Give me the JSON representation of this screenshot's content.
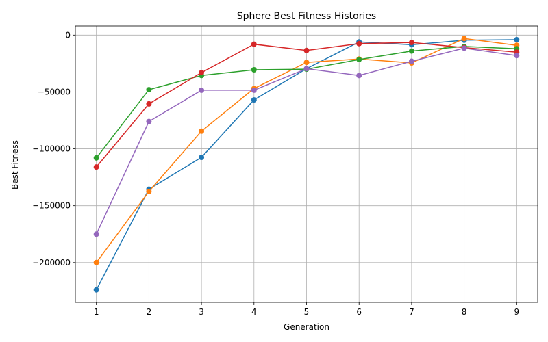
{
  "chart_data": {
    "type": "line",
    "title": "Sphere Best Fitness Histories",
    "xlabel": "Generation",
    "ylabel": "Best Fitness",
    "x": [
      1,
      2,
      3,
      4,
      5,
      6,
      7,
      8,
      9
    ],
    "xlim": [
      0.6,
      9.4
    ],
    "ylim": [
      -235000,
      8000
    ],
    "xticks": [
      1,
      2,
      3,
      4,
      5,
      6,
      7,
      8,
      9
    ],
    "yticks": [
      0,
      -50000,
      -100000,
      -150000,
      -200000
    ],
    "grid": true,
    "series": [
      {
        "color": "#1f77b4",
        "values": [
          -224000,
          -135500,
          -107500,
          -57000,
          -29500,
          -6000,
          -8500,
          -4500,
          -4000
        ]
      },
      {
        "color": "#ff7f0e",
        "values": [
          -200000,
          -137500,
          -84500,
          -47000,
          -24000,
          -21000,
          -24500,
          -3000,
          -9000
        ]
      },
      {
        "color": "#2ca02c",
        "values": [
          -108000,
          -48000,
          -35500,
          -30500,
          -30000,
          -21500,
          -14000,
          -10000,
          -12000
        ]
      },
      {
        "color": "#d62728",
        "values": [
          -116000,
          -60500,
          -33000,
          -8000,
          -13500,
          -7500,
          -6500,
          -11000,
          -15000
        ]
      },
      {
        "color": "#9467bd",
        "values": [
          -175000,
          -76000,
          -48500,
          -48500,
          -29500,
          -35500,
          -23000,
          -11500,
          -18000
        ]
      }
    ]
  }
}
